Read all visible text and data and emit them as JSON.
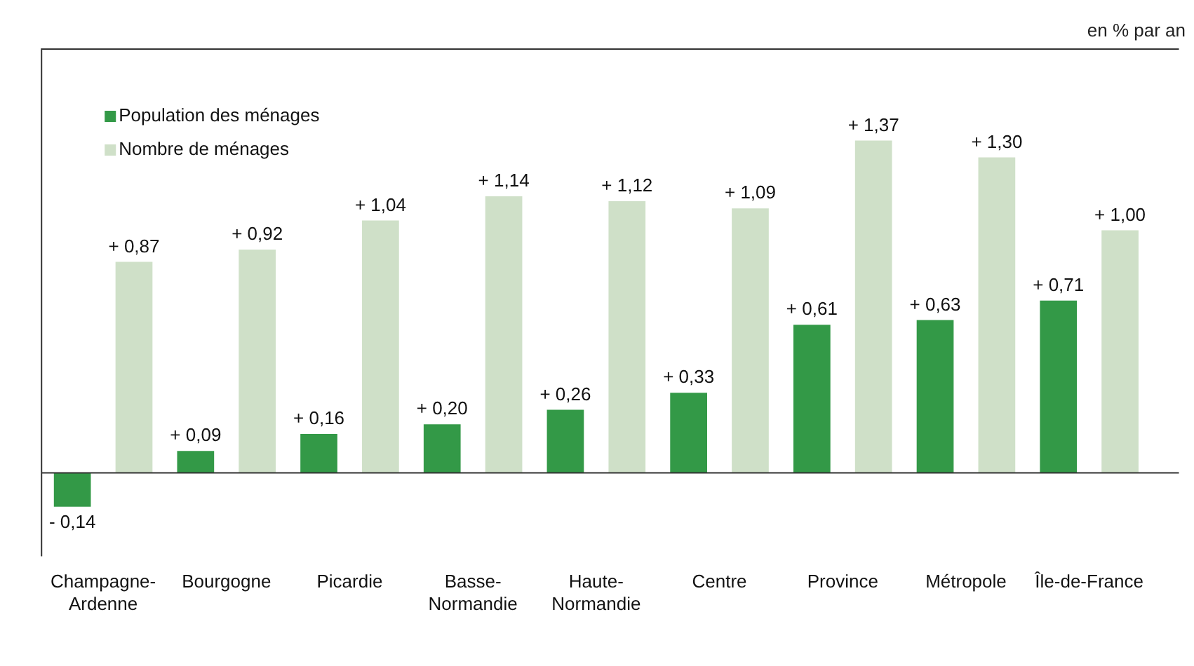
{
  "chart_data": {
    "type": "bar",
    "subtitle": "en % par an",
    "categories": [
      "Champagne-Ardenne",
      "Bourgogne",
      "Picardie",
      "Basse-Normandie",
      "Haute-Normandie",
      "Centre",
      "Province",
      "Métropole",
      "Île-de-France"
    ],
    "series": [
      {
        "name": "Population des ménages",
        "color": "#339947",
        "values": [
          -0.14,
          0.09,
          0.16,
          0.2,
          0.26,
          0.33,
          0.61,
          0.63,
          0.71
        ],
        "value_labels": [
          "- 0,14",
          "+ 0,09",
          "+ 0,16",
          "+ 0,20",
          "+ 0,26",
          "+ 0,33",
          "+ 0,61",
          "+ 0,63",
          "+ 0,71"
        ]
      },
      {
        "name": "Nombre de ménages",
        "color": "#cfe0c8",
        "values": [
          0.87,
          0.92,
          1.04,
          1.14,
          1.12,
          1.09,
          1.37,
          1.3,
          1.0
        ],
        "value_labels": [
          "+ 0,87",
          "+ 0,92",
          "+ 1,04",
          "+ 1,14",
          "+ 1,12",
          "+ 1,09",
          "+ 1,37",
          "+ 1,30",
          "+ 1,00"
        ]
      }
    ],
    "grid": false,
    "legend": "top left",
    "tick_labels": "x"
  }
}
